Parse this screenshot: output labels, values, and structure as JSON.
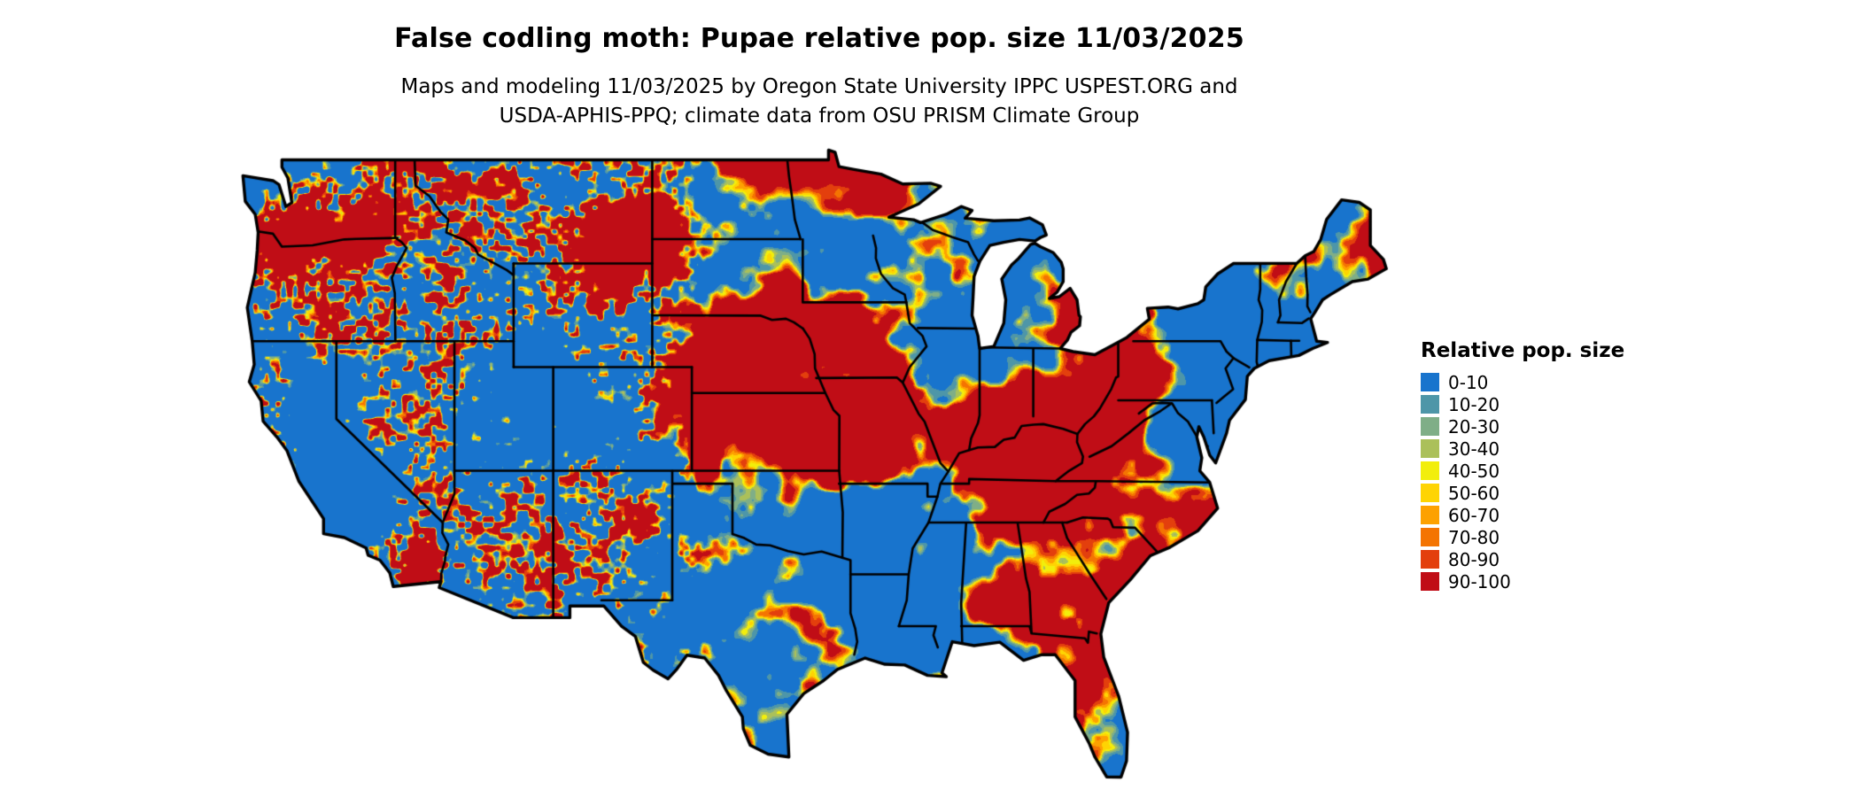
{
  "page": {
    "title": "False codling moth: Pupae relative pop. size 11/03/2025",
    "subtitle_line1": "Maps and modeling 11/03/2025 by Oregon State University IPPC USPEST.ORG and",
    "subtitle_line2": "USDA-APHIS-PPQ; climate data from OSU PRISM Climate Group"
  },
  "legend": {
    "title": "Relative pop. size",
    "entries": [
      {
        "label": "0-10",
        "color": "#1874cd"
      },
      {
        "label": "10-20",
        "color": "#4e96a8"
      },
      {
        "label": "20-30",
        "color": "#7fae87"
      },
      {
        "label": "30-40",
        "color": "#abc05a"
      },
      {
        "label": "40-50",
        "color": "#f2ee0c"
      },
      {
        "label": "50-60",
        "color": "#fed403"
      },
      {
        "label": "60-70",
        "color": "#fda101"
      },
      {
        "label": "70-80",
        "color": "#f47402"
      },
      {
        "label": "80-90",
        "color": "#e33f0d"
      },
      {
        "label": "90-100",
        "color": "#c00d16"
      }
    ]
  },
  "chart_data": {
    "type": "heatmap",
    "title": "False codling moth: Pupae relative pop. size 11/03/2025",
    "region": "Contiguous United States (state boundaries shown)",
    "variable": "Relative pop. size",
    "date": "11/03/2025",
    "categories": [
      "0-10",
      "10-20",
      "20-30",
      "30-40",
      "40-50",
      "50-60",
      "60-70",
      "70-80",
      "80-90",
      "90-100"
    ],
    "colors": [
      "#1874cd",
      "#4e96a8",
      "#7fae87",
      "#abc05a",
      "#f2ee0c",
      "#fed403",
      "#fda101",
      "#f47402",
      "#e33f0d",
      "#c00d16"
    ],
    "legend_title": "Relative pop. size",
    "legend_position": "right",
    "description": "Raster map of relative population size classes over the lower 48 United States; dominant classes are 0-10 (blue) and 90-100 (red) with thin yellow/orange transition bands; dense fine-grained speckling in the mountainous West, larger blobs across the Plains, Midwest and East."
  }
}
